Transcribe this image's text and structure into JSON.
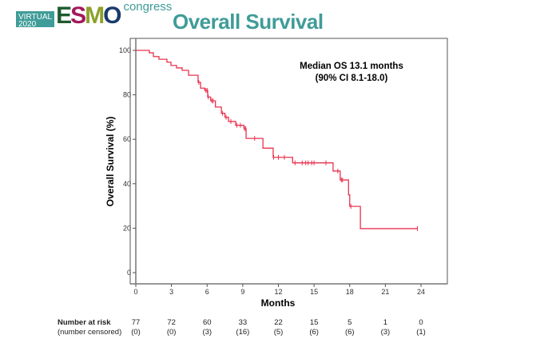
{
  "header": {
    "logo": {
      "virtual": "VIRTUAL",
      "year": "2020",
      "brand": "ESMO",
      "suffix": "congress"
    },
    "title": "Overall Survival",
    "colors": {
      "accent": "#3f9c98"
    }
  },
  "chart_data": {
    "type": "line",
    "subtype": "kaplan-meier",
    "title": "",
    "xlabel": "Months",
    "ylabel": "Overall Survival (%)",
    "xlim": [
      0,
      24
    ],
    "ylim": [
      0,
      100
    ],
    "xticks": [
      0,
      3,
      6,
      9,
      12,
      15,
      18,
      21,
      24
    ],
    "yticks": [
      0,
      20,
      40,
      60,
      80,
      100
    ],
    "grid": false,
    "line_color": "#e8334f",
    "annotation": {
      "line1": "Median OS 13.1 months",
      "line2": "(90% CI 8.1-18.0)"
    },
    "steps": [
      [
        0,
        100
      ],
      [
        1.14,
        98.9
      ],
      [
        1.48,
        97.2
      ],
      [
        1.95,
        96
      ],
      [
        2.62,
        94.7
      ],
      [
        2.96,
        93.2
      ],
      [
        3.43,
        92.1
      ],
      [
        3.9,
        91
      ],
      [
        4.44,
        88.8
      ],
      [
        5.24,
        85.6
      ],
      [
        5.45,
        83
      ],
      [
        5.8,
        82
      ],
      [
        6.05,
        79
      ],
      [
        6.3,
        77.3
      ],
      [
        6.7,
        74.5
      ],
      [
        7.2,
        71.7
      ],
      [
        7.5,
        69.9
      ],
      [
        7.8,
        68
      ],
      [
        8.4,
        66.3
      ],
      [
        9.1,
        64.8
      ],
      [
        9.28,
        60.4
      ],
      [
        10.7,
        56
      ],
      [
        11.56,
        51.9
      ],
      [
        13.2,
        49.4
      ],
      [
        16.6,
        45.7
      ],
      [
        17.2,
        41.7
      ],
      [
        17.9,
        35
      ],
      [
        18.0,
        29.8
      ],
      [
        18.9,
        19.8
      ]
    ],
    "end_time": 23.7,
    "censored": [
      5.3,
      5.9,
      6.0,
      6.1,
      6.4,
      6.5,
      7.3,
      7.6,
      8.0,
      8.5,
      8.8,
      9.15,
      9.25,
      10.0,
      11.6,
      12.0,
      12.5,
      13.4,
      14.0,
      14.3,
      14.5,
      14.8,
      15.0,
      16.0,
      17.0,
      17.3,
      17.4,
      18.1,
      23.7
    ],
    "risk_table": {
      "label_at_risk": "Number at risk",
      "label_censored": "(number censored)",
      "times": [
        0,
        3,
        6,
        9,
        12,
        15,
        18,
        21,
        24
      ],
      "at_risk": [
        "77",
        "72",
        "60",
        "33",
        "22",
        "15",
        "5",
        "1",
        "0"
      ],
      "censored": [
        "(0)",
        "(0)",
        "(3)",
        "(16)",
        "(5)",
        "(6)",
        "(6)",
        "(3)",
        "(1)"
      ]
    }
  }
}
